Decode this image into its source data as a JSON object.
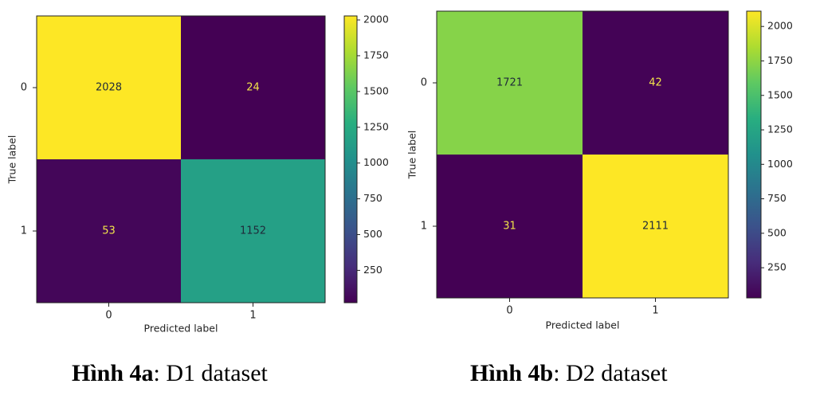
{
  "chart_data": [
    {
      "type": "heatmap",
      "title": "",
      "xlabel": "Predicted label",
      "ylabel": "True label",
      "x_categories": [
        "0",
        "1"
      ],
      "y_categories": [
        "0",
        "1"
      ],
      "values": [
        [
          2028,
          24
        ],
        [
          53,
          1152
        ]
      ],
      "colormap": "viridis",
      "vmin": 24,
      "vmax": 2028,
      "colorbar_ticks": [
        250,
        500,
        750,
        1000,
        1250,
        1500,
        1750,
        2000
      ]
    },
    {
      "type": "heatmap",
      "title": "",
      "xlabel": "Predicted label",
      "ylabel": "True label",
      "x_categories": [
        "0",
        "1"
      ],
      "y_categories": [
        "0",
        "1"
      ],
      "values": [
        [
          1721,
          42
        ],
        [
          31,
          2111
        ]
      ],
      "colormap": "viridis",
      "vmin": 31,
      "vmax": 2111,
      "colorbar_ticks": [
        250,
        500,
        750,
        1000,
        1250,
        1500,
        1750,
        2000
      ]
    }
  ],
  "captions": [
    {
      "bold": "Hình 4a",
      "rest": ": D1 dataset"
    },
    {
      "bold": "Hình 4b",
      "rest": ": D2 dataset"
    }
  ]
}
